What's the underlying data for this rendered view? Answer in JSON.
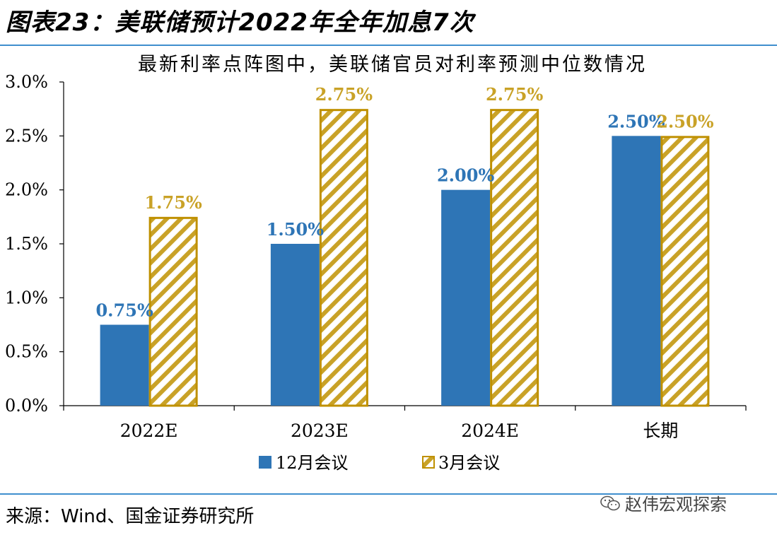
{
  "figure_title": "图表23：美联储预计2022年全年加息7次",
  "source_note": "来源：Wind、国金证券研究所",
  "watermark_text": "赵伟宏观探索",
  "colors": {
    "dec_meeting": "#2e75b6",
    "mar_meeting_stroke": "#bf9000",
    "mar_meeting_hatch": "#c9a227",
    "rule": "#3f8fce"
  },
  "chart_data": {
    "type": "bar",
    "title": "最新利率点阵图中，美联储官员对利率预测中位数情况",
    "categories": [
      "2022E",
      "2023E",
      "2024E",
      "长期"
    ],
    "series": [
      {
        "name": "12月会议",
        "values": [
          0.75,
          1.5,
          2.0,
          2.5
        ],
        "labels": [
          "0.75%",
          "1.50%",
          "2.00%",
          "2.50%"
        ],
        "pattern": "solid"
      },
      {
        "name": "3月会议",
        "values": [
          1.75,
          2.75,
          2.75,
          2.5
        ],
        "labels": [
          "1.75%",
          "2.75%",
          "2.75%",
          "2.50%"
        ],
        "pattern": "hatched"
      }
    ],
    "ylim": [
      0,
      3.0
    ],
    "yticks": [
      "0.0%",
      "0.5%",
      "1.0%",
      "1.5%",
      "2.0%",
      "2.5%",
      "3.0%"
    ],
    "ytick_values": [
      0,
      0.5,
      1.0,
      1.5,
      2.0,
      2.5,
      3.0
    ],
    "grid": false,
    "legend_position": "bottom"
  }
}
